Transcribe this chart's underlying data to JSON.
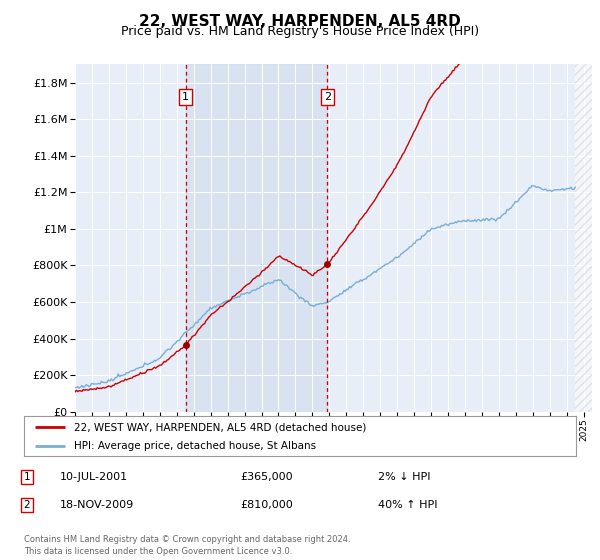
{
  "title": "22, WEST WAY, HARPENDEN, AL5 4RD",
  "subtitle": "Price paid vs. HM Land Registry's House Price Index (HPI)",
  "title_fontsize": 11,
  "subtitle_fontsize": 9,
  "ylabel_ticks_labels": [
    "£0",
    "£200K",
    "£400K",
    "£600K",
    "£800K",
    "£1M",
    "£1.2M",
    "£1.4M",
    "£1.6M",
    "£1.8M"
  ],
  "ytick_vals": [
    0,
    200000,
    400000,
    600000,
    800000,
    1000000,
    1200000,
    1400000,
    1600000,
    1800000
  ],
  "ylim": [
    0,
    1900000
  ],
  "xlim_start": 1995.0,
  "xlim_end": 2025.5,
  "background_color": "#ffffff",
  "plot_bg_color": "#e8eef8",
  "grid_color": "#ffffff",
  "red_line_color": "#cc0000",
  "blue_line_color": "#7aadd4",
  "marker1_year": 2001.52,
  "marker1_price": 365000,
  "marker2_year": 2009.88,
  "marker2_price": 810000,
  "legend_line1": "22, WEST WAY, HARPENDEN, AL5 4RD (detached house)",
  "legend_line2": "HPI: Average price, detached house, St Albans",
  "marker1_date": "10-JUL-2001",
  "marker1_price_str": "£365,000",
  "marker1_hpi_str": "2% ↓ HPI",
  "marker2_date": "18-NOV-2009",
  "marker2_price_str": "£810,000",
  "marker2_hpi_str": "40% ↑ HPI",
  "footer": "Contains HM Land Registry data © Crown copyright and database right 2024.\nThis data is licensed under the Open Government Licence v3.0."
}
